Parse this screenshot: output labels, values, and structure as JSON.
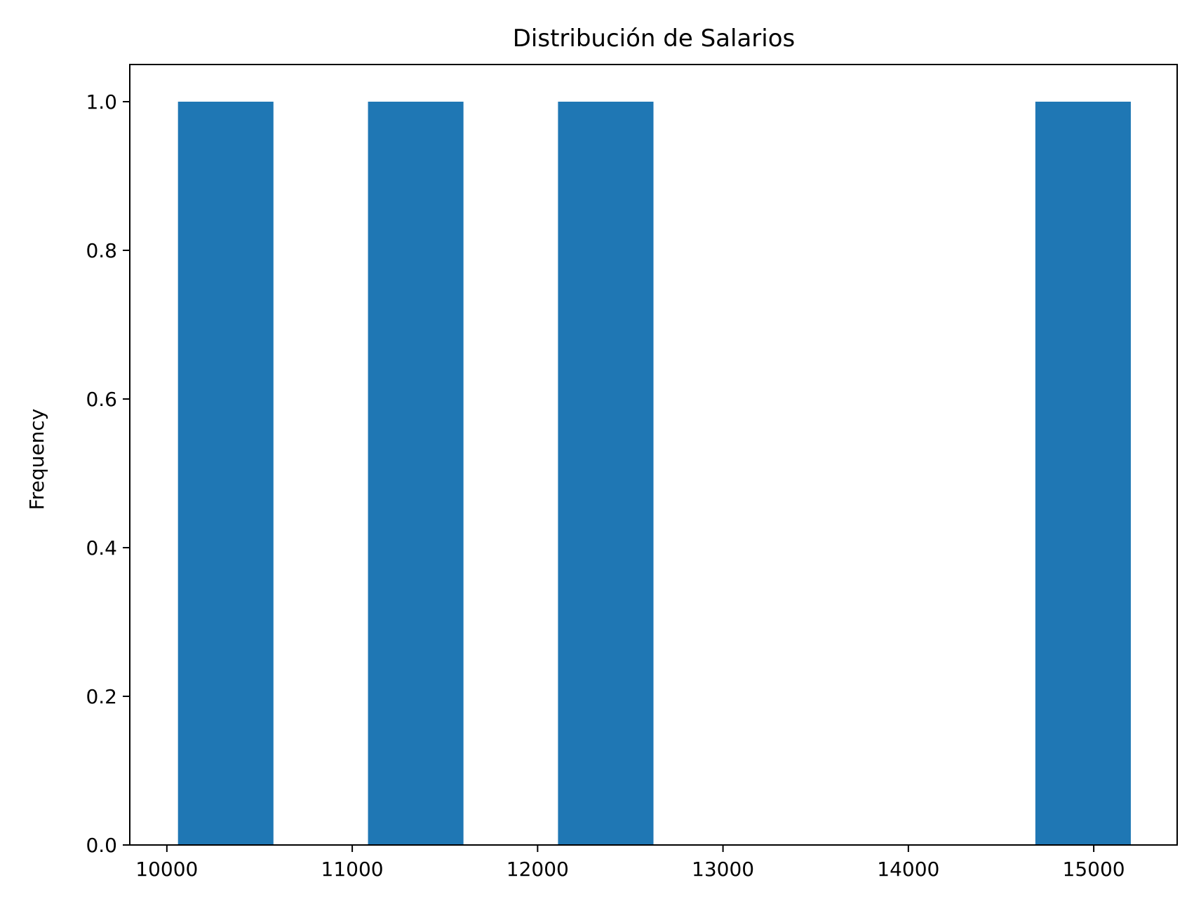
{
  "chart_data": {
    "type": "bar",
    "title": "Distribución de Salarios",
    "xlabel": "",
    "ylabel": "Frequency",
    "xlim": [
      9800,
      15450
    ],
    "ylim": [
      0,
      1.05
    ],
    "grid": false,
    "legend": "none",
    "bar_color": "#1f77b4",
    "x_ticks": [
      10000,
      11000,
      12000,
      13000,
      14000,
      15000
    ],
    "x_tick_labels": [
      "10000",
      "11000",
      "12000",
      "13000",
      "14000",
      "15000"
    ],
    "y_ticks": [
      0.0,
      0.2,
      0.4,
      0.6,
      0.8,
      1.0
    ],
    "y_tick_labels": [
      "0.0",
      "0.2",
      "0.4",
      "0.6",
      "0.8",
      "1.0"
    ],
    "bins": [
      {
        "start": 10060,
        "end": 10575,
        "value": 1
      },
      {
        "start": 11085,
        "end": 11600,
        "value": 1
      },
      {
        "start": 12110,
        "end": 12625,
        "value": 1
      },
      {
        "start": 12625,
        "end": 13140,
        "value": 0
      },
      {
        "start": 13140,
        "end": 13655,
        "value": 0
      },
      {
        "start": 13655,
        "end": 14170,
        "value": 0
      },
      {
        "start": 14170,
        "end": 14685,
        "value": 0
      },
      {
        "start": 14685,
        "end": 15200,
        "value": 1
      }
    ]
  }
}
